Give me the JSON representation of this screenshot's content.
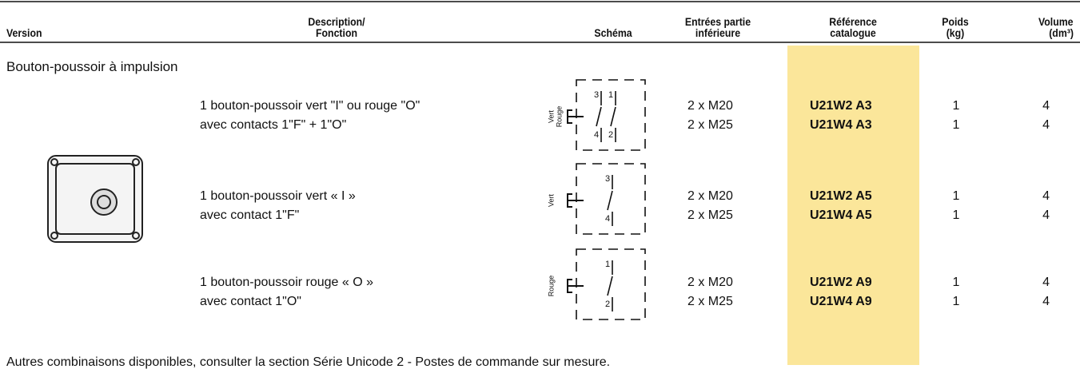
{
  "header": {
    "columns": [
      [
        "Version"
      ],
      [
        "Description/",
        "Fonction"
      ],
      [
        "Schéma"
      ],
      [
        "Entrées partie",
        "inférieure"
      ],
      [
        "Référence",
        "catalogue"
      ],
      [
        "Poids",
        "(kg)"
      ],
      [
        "Volume",
        "(dm³)"
      ]
    ]
  },
  "section": {
    "title": "Bouton-poussoir à impulsion"
  },
  "groups": [
    {
      "description": [
        "1 bouton-poussoir vert \"I\" ou rouge \"O\"",
        "avec contacts 1\"F\" + 1\"O\""
      ],
      "schema": {
        "side": [
          "Vert",
          "Rouge"
        ],
        "top": [
          "3",
          "1"
        ],
        "bottom": [
          "4",
          "2"
        ]
      },
      "entries": [
        "2 x M20",
        "2 x M25"
      ],
      "references": [
        "U21W2 A3",
        "U21W4 A3"
      ],
      "weight": [
        "1",
        "1"
      ],
      "volume": [
        "4",
        "4"
      ]
    },
    {
      "description": [
        "1 bouton-poussoir vert « I »",
        "avec contact 1\"F\""
      ],
      "schema": {
        "side": [
          "Vert"
        ],
        "top": [
          "3"
        ],
        "bottom": [
          "4"
        ]
      },
      "entries": [
        "2 x M20",
        "2 x M25"
      ],
      "references": [
        "U21W2 A5",
        "U21W4 A5"
      ],
      "weight": [
        "1",
        "1"
      ],
      "volume": [
        "4",
        "4"
      ]
    },
    {
      "description": [
        "1 bouton-poussoir rouge « O »",
        "avec contact 1\"O\""
      ],
      "schema": {
        "side": [
          "Rouge"
        ],
        "top": [
          "1"
        ],
        "bottom": [
          "2"
        ]
      },
      "entries": [
        "2 x M20",
        "2 x M25"
      ],
      "references": [
        "U21W2 A9",
        "U21W4 A9"
      ],
      "weight": [
        "1",
        "1"
      ],
      "volume": [
        "4",
        "4"
      ]
    }
  ],
  "footer": {
    "note": "Autres combinaisons disponibles, consulter la section Série Unicode 2 - Postes de commande sur mesure."
  }
}
